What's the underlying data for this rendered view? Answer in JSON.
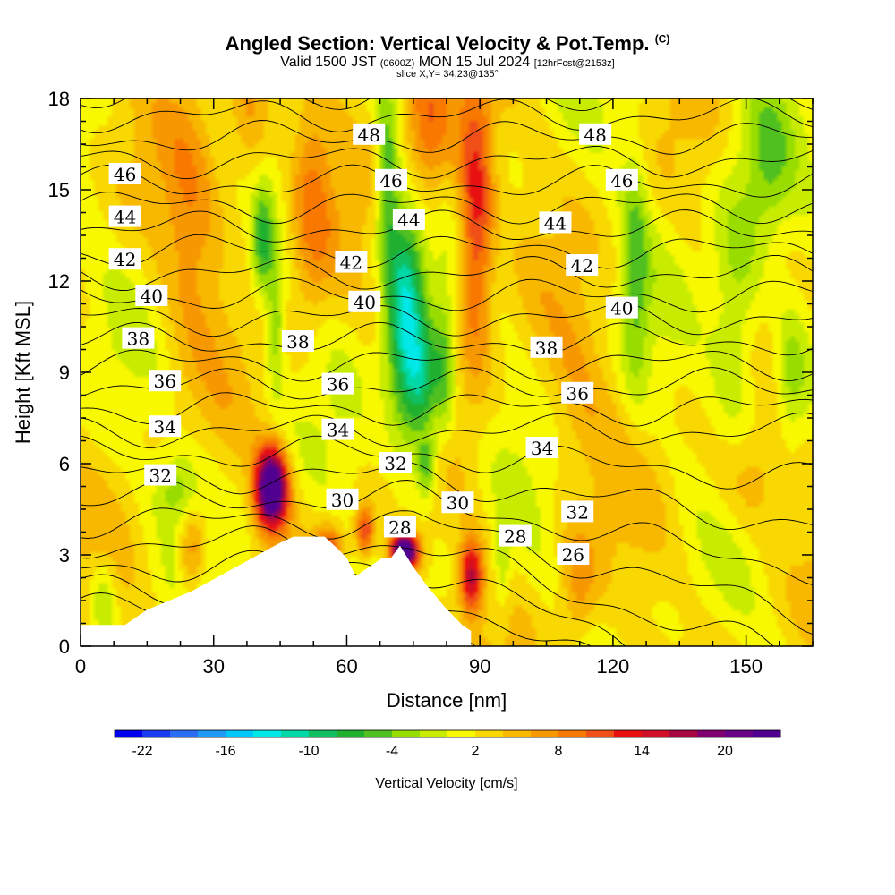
{
  "header": {
    "title": "Angled Section: Vertical Velocity & Pot.Temp.",
    "copyright": "(C)",
    "subtitle_main": "Valid 1500 JST",
    "subtitle_zulu": "(0600Z)",
    "subtitle_date": "MON 15 Jul 2024",
    "subtitle_run": "[12hrFcst@2153z]",
    "slice": "slice X,Y= 34,23@135°"
  },
  "chart_data": {
    "type": "heatmap",
    "xlabel": "Distance [nm]",
    "ylabel": "Height [Kft MSL]",
    "xlim": [
      0,
      165
    ],
    "ylim": [
      0,
      18
    ],
    "xticks": [
      "0",
      "30",
      "60",
      "90",
      "120",
      "150"
    ],
    "yticks": [
      "0",
      "3",
      "6",
      "9",
      "12",
      "15",
      "18"
    ],
    "colorbar": {
      "label": "Vertical Velocity [cm/s]",
      "tick_labels": [
        "-22",
        "-16",
        "-10",
        "-4",
        "2",
        "8",
        "14",
        "20"
      ],
      "min": -24,
      "max": 24,
      "step": 2,
      "colors": [
        "#0000ee",
        "#1a3cf0",
        "#2a6df5",
        "#1f9bf5",
        "#00c8f8",
        "#00e8e8",
        "#00d8a8",
        "#10c060",
        "#20b030",
        "#50c020",
        "#98dc00",
        "#c8ec00",
        "#f8f800",
        "#f8d800",
        "#f8b800",
        "#f89800",
        "#f87800",
        "#f05018",
        "#e81010",
        "#d01028",
        "#a80840",
        "#800070",
        "#680088",
        "#500090"
      ]
    },
    "terrain": [
      [
        0,
        0.7
      ],
      [
        10,
        0.7
      ],
      [
        15,
        1.2
      ],
      [
        20,
        1.5
      ],
      [
        25,
        1.8
      ],
      [
        30,
        2.2
      ],
      [
        35,
        2.6
      ],
      [
        40,
        3.0
      ],
      [
        45,
        3.4
      ],
      [
        48,
        3.6
      ],
      [
        55,
        3.6
      ],
      [
        58,
        3.2
      ],
      [
        60,
        2.9
      ],
      [
        62,
        2.3
      ],
      [
        65,
        2.6
      ],
      [
        68,
        2.9
      ],
      [
        70,
        2.9
      ],
      [
        72,
        3.3
      ],
      [
        75,
        2.6
      ],
      [
        78,
        2.0
      ],
      [
        82,
        1.3
      ],
      [
        86,
        0.7
      ],
      [
        88,
        0.5
      ]
    ],
    "theta_labels": [
      {
        "v": "46",
        "x": 10,
        "y": 15.5
      },
      {
        "v": "44",
        "x": 10,
        "y": 14.1
      },
      {
        "v": "42",
        "x": 10,
        "y": 12.7
      },
      {
        "v": "40",
        "x": 16,
        "y": 11.5
      },
      {
        "v": "38",
        "x": 13,
        "y": 10.1
      },
      {
        "v": "36",
        "x": 19,
        "y": 8.7
      },
      {
        "v": "34",
        "x": 19,
        "y": 7.2
      },
      {
        "v": "32",
        "x": 18,
        "y": 5.6
      },
      {
        "v": "48",
        "x": 65,
        "y": 16.8
      },
      {
        "v": "46",
        "x": 70,
        "y": 15.3
      },
      {
        "v": "44",
        "x": 74,
        "y": 14.0
      },
      {
        "v": "42",
        "x": 61,
        "y": 12.6
      },
      {
        "v": "40",
        "x": 64,
        "y": 11.3
      },
      {
        "v": "38",
        "x": 49,
        "y": 10.0
      },
      {
        "v": "36",
        "x": 58,
        "y": 8.6
      },
      {
        "v": "34",
        "x": 58,
        "y": 7.1
      },
      {
        "v": "32",
        "x": 71,
        "y": 6.0
      },
      {
        "v": "30",
        "x": 59,
        "y": 4.8
      },
      {
        "v": "28",
        "x": 72,
        "y": 3.9
      },
      {
        "v": "30",
        "x": 85,
        "y": 4.7
      },
      {
        "v": "28",
        "x": 98,
        "y": 3.6
      },
      {
        "v": "26",
        "x": 111,
        "y": 3.0
      },
      {
        "v": "32",
        "x": 112,
        "y": 4.4
      },
      {
        "v": "34",
        "x": 104,
        "y": 6.5
      },
      {
        "v": "36",
        "x": 112,
        "y": 8.3
      },
      {
        "v": "38",
        "x": 105,
        "y": 9.8
      },
      {
        "v": "40",
        "x": 122,
        "y": 11.1
      },
      {
        "v": "42",
        "x": 113,
        "y": 12.5
      },
      {
        "v": "44",
        "x": 107,
        "y": 13.9
      },
      {
        "v": "46",
        "x": 122,
        "y": 15.3
      },
      {
        "v": "48",
        "x": 116,
        "y": 16.8
      }
    ],
    "w_features": [
      {
        "x": 43,
        "y": 5.2,
        "sx": 3.5,
        "sy": 1.3,
        "a": 26
      },
      {
        "x": 73,
        "y": 3.1,
        "sx": 3.0,
        "sy": 0.6,
        "a": 26
      },
      {
        "x": 88,
        "y": 2.3,
        "sx": 2.5,
        "sy": 1.2,
        "a": 14
      },
      {
        "x": 64,
        "y": 3.8,
        "sx": 2.0,
        "sy": 0.8,
        "a": 10
      },
      {
        "x": 56,
        "y": 3.2,
        "sx": 3.0,
        "sy": 0.8,
        "a": 9
      },
      {
        "x": 89,
        "y": 14.0,
        "sx": 4.0,
        "sy": 4.5,
        "a": 12
      },
      {
        "x": 78,
        "y": 17.0,
        "sx": 6.0,
        "sy": 3.0,
        "a": 8
      },
      {
        "x": 52,
        "y": 14.5,
        "sx": 5.0,
        "sy": 4.0,
        "a": 6
      },
      {
        "x": 25,
        "y": 14.0,
        "sx": 7.0,
        "sy": 4.0,
        "a": 5
      },
      {
        "x": 38,
        "y": 17.0,
        "sx": 5.0,
        "sy": 3.0,
        "a": 5
      },
      {
        "x": 25,
        "y": 3.0,
        "sx": 3.0,
        "sy": 1.5,
        "a": 7
      },
      {
        "x": 112,
        "y": 2.0,
        "sx": 4.0,
        "sy": 2.0,
        "a": 5
      },
      {
        "x": 150,
        "y": 5.5,
        "sx": 8.0,
        "sy": 2.0,
        "a": 5
      },
      {
        "x": 112,
        "y": 8.0,
        "sx": 8.0,
        "sy": 3.0,
        "a": 3
      },
      {
        "x": 73,
        "y": 11.0,
        "sx": 4.5,
        "sy": 4.0,
        "a": -14
      },
      {
        "x": 77,
        "y": 8.5,
        "sx": 4.0,
        "sy": 2.0,
        "a": -10
      },
      {
        "x": 78,
        "y": 5.9,
        "sx": 2.2,
        "sy": 1.0,
        "a": -8
      },
      {
        "x": 82,
        "y": 9.0,
        "sx": 2.5,
        "sy": 2.5,
        "a": -6
      },
      {
        "x": 69,
        "y": 15.5,
        "sx": 2.5,
        "sy": 2.5,
        "a": -9
      },
      {
        "x": 44,
        "y": 10.5,
        "sx": 2.0,
        "sy": 2.0,
        "a": -6
      },
      {
        "x": 41,
        "y": 13.2,
        "sx": 2.5,
        "sy": 1.8,
        "a": -8
      },
      {
        "x": 22,
        "y": 5.2,
        "sx": 5.0,
        "sy": 1.2,
        "a": -5
      },
      {
        "x": 125,
        "y": 12.5,
        "sx": 3.0,
        "sy": 4.0,
        "a": -6
      },
      {
        "x": 148,
        "y": 11.0,
        "sx": 6.0,
        "sy": 5.0,
        "a": -6
      },
      {
        "x": 160,
        "y": 9.0,
        "sx": 4.0,
        "sy": 2.5,
        "a": -6
      },
      {
        "x": 95,
        "y": 2.5,
        "sx": 2.0,
        "sy": 1.5,
        "a": -4
      },
      {
        "x": 155,
        "y": 16.0,
        "sx": 5.0,
        "sy": 3.0,
        "a": -4
      },
      {
        "x": 5,
        "y": 1.5,
        "sx": 3.0,
        "sy": 1.5,
        "a": -5
      }
    ]
  }
}
